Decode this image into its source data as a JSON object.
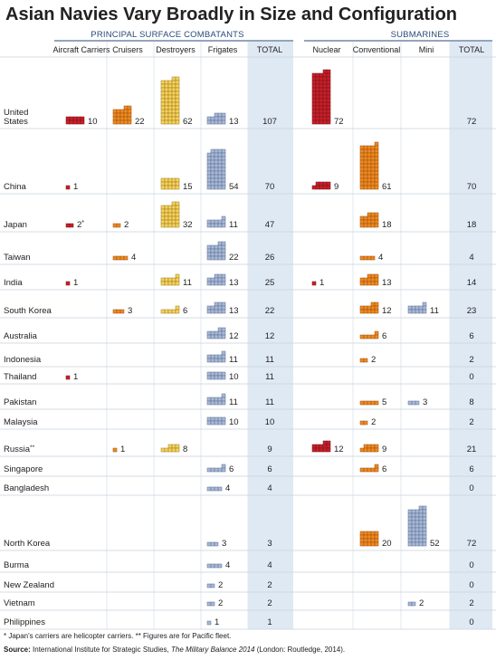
{
  "chart_data": {
    "type": "table",
    "title": "Asian Navies Vary Broadly in Size and Configuration",
    "groups": {
      "surface": "PRINCIPAL SURFACE COMBATANTS",
      "subs": "SUBMARINES"
    },
    "columns": [
      {
        "key": "carriers",
        "label": "Aircraft Carriers",
        "color": "#c8202a"
      },
      {
        "key": "cruisers",
        "label": "Cruisers",
        "color": "#f08a22"
      },
      {
        "key": "destroyers",
        "label": "Destroyers",
        "color": "#f7d25e"
      },
      {
        "key": "frigates",
        "label": "Frigates",
        "color": "#a9b9d6"
      },
      {
        "key": "surf_total",
        "label": "TOTAL"
      },
      {
        "key": "nuclear",
        "label": "Nuclear",
        "color": "#c8202a"
      },
      {
        "key": "conventional",
        "label": "Conventional",
        "color": "#f08a22"
      },
      {
        "key": "mini",
        "label": "Mini",
        "color": "#a9b9d6"
      },
      {
        "key": "sub_total",
        "label": "TOTAL"
      }
    ],
    "rows": [
      {
        "country": "United\nStates",
        "carriers": 10,
        "cruisers": 22,
        "destroyers": 62,
        "frigates": 13,
        "surf_total": 107,
        "nuclear": 72,
        "sub_total": 72
      },
      {
        "country": "China",
        "carriers": 1,
        "destroyers": 15,
        "frigates": 54,
        "surf_total": 70,
        "nuclear": 9,
        "conventional": 61,
        "sub_total": 70
      },
      {
        "country": "Japan",
        "carriers": 2,
        "carriers_mark": "*",
        "cruisers": 2,
        "destroyers": 32,
        "frigates": 11,
        "surf_total": 47,
        "conventional": 18,
        "sub_total": 18
      },
      {
        "country": "Taiwan",
        "cruisers": 4,
        "frigates": 22,
        "surf_total": 26,
        "conventional": 4,
        "sub_total": 4
      },
      {
        "country": "India",
        "carriers": 1,
        "destroyers": 11,
        "frigates": 13,
        "surf_total": 25,
        "nuclear": 1,
        "conventional": 13,
        "sub_total": 14
      },
      {
        "country": "South Korea",
        "cruisers": 3,
        "destroyers": 6,
        "frigates": 13,
        "surf_total": 22,
        "conventional": 12,
        "mini": 11,
        "sub_total": 23
      },
      {
        "country": "Australia",
        "frigates": 12,
        "surf_total": 12,
        "conventional": 6,
        "sub_total": 6
      },
      {
        "country": "Indonesia",
        "frigates": 11,
        "surf_total": 11,
        "conventional": 2,
        "sub_total": 2
      },
      {
        "country": "Thailand",
        "carriers": 1,
        "frigates": 10,
        "surf_total": 11,
        "sub_total": 0
      },
      {
        "country": "Pakistan",
        "frigates": 11,
        "surf_total": 11,
        "conventional": 5,
        "mini": 3,
        "sub_total": 8
      },
      {
        "country": "Malaysia",
        "frigates": 10,
        "surf_total": 10,
        "conventional": 2,
        "sub_total": 2
      },
      {
        "country": "Russia",
        "country_mark": "**",
        "cruisers": 1,
        "destroyers": 8,
        "surf_total": 9,
        "nuclear": 12,
        "conventional": 9,
        "sub_total": 21
      },
      {
        "country": "Singapore",
        "frigates": 6,
        "surf_total": 6,
        "conventional": 6,
        "sub_total": 6
      },
      {
        "country": "Bangladesh",
        "frigates": 4,
        "surf_total": 4,
        "sub_total": 0
      },
      {
        "country": "North Korea",
        "frigates": 3,
        "surf_total": 3,
        "conventional": 20,
        "mini": 52,
        "sub_total": 72
      },
      {
        "country": "Burma",
        "frigates": 4,
        "surf_total": 4,
        "sub_total": 0
      },
      {
        "country": "New Zealand",
        "frigates": 2,
        "surf_total": 2,
        "sub_total": 0
      },
      {
        "country": "Vietnam",
        "frigates": 2,
        "surf_total": 2,
        "mini": 2,
        "sub_total": 2
      },
      {
        "country": "Philippines",
        "frigates": 1,
        "surf_total": 1,
        "sub_total": 0
      }
    ],
    "notes": "* Japan's carriers are helicopter carriers.   ** Figures are for Pacific fleet.",
    "source": {
      "label": "Source:",
      "pre": " International Institute for Strategic Studies, ",
      "italic": "The Military Balance 2014",
      "post": " (London: Routledge, 2014)."
    }
  }
}
